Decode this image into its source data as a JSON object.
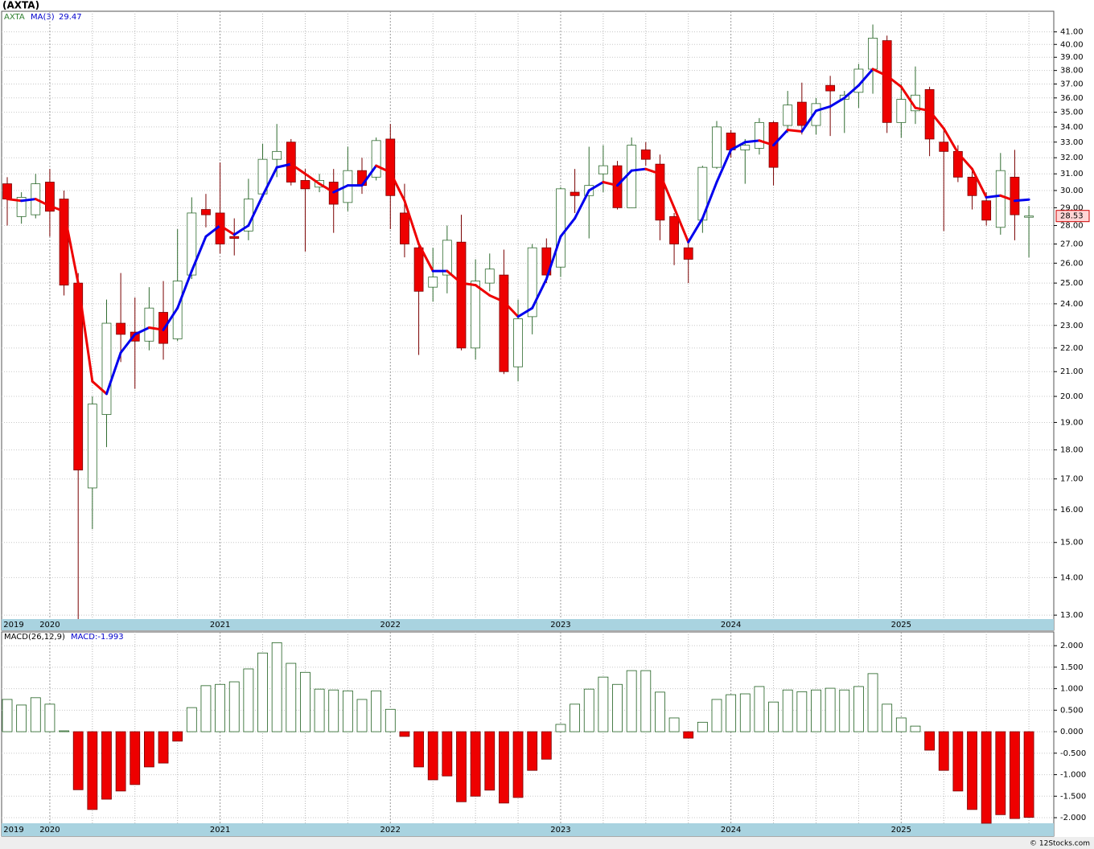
{
  "chart_data": [
    {
      "type": "candlestick",
      "title": "(AXTA)",
      "symbol": "AXTA",
      "categories": [
        "2019",
        null,
        null,
        "2020",
        null,
        null,
        null,
        null,
        null,
        null,
        null,
        null,
        null,
        null,
        null,
        "2021",
        null,
        null,
        null,
        null,
        null,
        null,
        null,
        null,
        null,
        null,
        null,
        "2022",
        null,
        null,
        null,
        null,
        null,
        null,
        null,
        null,
        null,
        null,
        null,
        "2023",
        null,
        null,
        null,
        null,
        null,
        null,
        null,
        null,
        null,
        null,
        null,
        "2024",
        null,
        null,
        null,
        null,
        null,
        null,
        null,
        null,
        null,
        null,
        null,
        "2025",
        null,
        null,
        null,
        null,
        null,
        null,
        null,
        null,
        null
      ],
      "open": [
        30.4,
        28.5,
        28.6,
        30.5,
        29.5,
        25.0,
        16.7,
        19.3,
        23.1,
        22.7,
        22.3,
        23.6,
        22.4,
        25.4,
        28.9,
        28.7,
        27.4,
        27.7,
        29.8,
        31.9,
        33.0,
        30.6,
        30.2,
        30.5,
        29.3,
        31.2,
        30.8,
        33.2,
        28.7,
        26.8,
        24.8,
        25.4,
        27.1,
        22.0,
        25.0,
        25.4,
        21.2,
        23.4,
        26.8,
        25.8,
        29.9,
        29.7,
        31.0,
        31.5,
        29.0,
        32.5,
        31.6,
        28.5,
        26.8,
        28.3,
        31.4,
        33.6,
        32.5,
        32.6,
        34.3,
        34.1,
        35.7,
        34.1,
        36.9,
        35.9,
        36.4,
        38.1,
        40.3,
        34.3,
        35.1,
        36.6,
        33.0,
        32.4,
        30.8,
        29.4,
        27.9,
        30.8,
        28.5
      ],
      "high": [
        30.8,
        29.9,
        31.0,
        31.3,
        30.0,
        25.5,
        20.0,
        24.2,
        25.5,
        24.3,
        24.8,
        25.1,
        27.8,
        29.6,
        29.8,
        31.7,
        28.4,
        30.7,
        32.9,
        34.2,
        33.2,
        31.3,
        31.0,
        31.3,
        32.7,
        32.0,
        33.3,
        34.2,
        30.4,
        27.0,
        26.8,
        28.0,
        28.6,
        26.2,
        26.5,
        26.7,
        24.2,
        27.0,
        27.3,
        30.2,
        31.3,
        32.7,
        32.8,
        31.8,
        33.3,
        33.0,
        32.2,
        28.7,
        27.1,
        31.5,
        34.4,
        33.8,
        33.2,
        34.6,
        34.4,
        36.5,
        37.1,
        36.0,
        37.6,
        36.5,
        38.5,
        41.6,
        40.7,
        37.0,
        38.3,
        36.8,
        34.0,
        32.8,
        31.2,
        29.9,
        32.3,
        32.5,
        29.1
      ],
      "low": [
        28.0,
        28.1,
        28.4,
        27.4,
        24.4,
        12.9,
        15.4,
        18.1,
        21.4,
        20.3,
        21.9,
        21.5,
        22.3,
        25.2,
        27.9,
        26.5,
        26.4,
        27.2,
        29.6,
        30.8,
        30.3,
        26.6,
        29.9,
        27.6,
        28.8,
        29.8,
        30.6,
        27.8,
        26.3,
        21.7,
        24.1,
        24.5,
        21.9,
        21.5,
        24.6,
        20.9,
        20.6,
        22.6,
        25.0,
        25.3,
        28.7,
        27.3,
        29.9,
        28.9,
        29.0,
        31.5,
        27.2,
        25.9,
        25.0,
        27.6,
        31.3,
        32.0,
        30.4,
        32.2,
        30.3,
        33.6,
        33.5,
        33.5,
        33.4,
        33.6,
        35.3,
        36.3,
        33.6,
        33.3,
        34.2,
        32.1,
        27.7,
        30.5,
        28.9,
        28.0,
        27.5,
        27.2,
        26.3
      ],
      "close": [
        29.5,
        29.6,
        30.4,
        28.8,
        24.9,
        17.3,
        19.7,
        23.1,
        22.6,
        22.3,
        23.8,
        22.2,
        25.1,
        28.7,
        28.6,
        27.0,
        27.3,
        29.5,
        31.9,
        32.4,
        30.5,
        30.1,
        30.6,
        29.2,
        31.2,
        30.3,
        33.1,
        29.7,
        27.0,
        24.6,
        25.3,
        27.2,
        22.0,
        25.1,
        25.7,
        21.0,
        23.3,
        26.8,
        25.4,
        30.1,
        29.7,
        30.3,
        31.5,
        29.0,
        32.8,
        31.9,
        28.3,
        27.0,
        26.2,
        31.4,
        34.0,
        32.5,
        32.8,
        34.3,
        31.4,
        35.5,
        34.1,
        35.6,
        36.5,
        36.2,
        38.1,
        40.5,
        34.3,
        35.9,
        36.2,
        33.2,
        32.4,
        30.8,
        29.7,
        28.3,
        31.2,
        28.6,
        28.53
      ],
      "close_label": "28.53",
      "up_color": "#ffffff",
      "up_stroke": "#2f6b2f",
      "down_color": "#ee0000",
      "down_stroke": "#7a0000",
      "ma": {
        "name": "MA(3)",
        "last_label": "29.47",
        "up_color": "#0000ee",
        "down_color": "#ee0000",
        "values": [
          29.5,
          29.4,
          29.5,
          29.1,
          28.8,
          25.0,
          20.6,
          20.1,
          21.8,
          22.6,
          22.9,
          22.8,
          23.8,
          25.6,
          27.4,
          28.0,
          27.5,
          28.0,
          29.7,
          31.4,
          31.6,
          31.0,
          30.4,
          29.9,
          30.3,
          30.3,
          31.5,
          31.1,
          29.4,
          27.0,
          25.6,
          25.6,
          25.0,
          24.9,
          24.4,
          24.1,
          23.4,
          23.8,
          25.2,
          27.4,
          28.4,
          30.0,
          30.5,
          30.3,
          31.2,
          31.3,
          31.0,
          29.0,
          27.1,
          28.4,
          30.5,
          32.5,
          33.0,
          33.1,
          32.8,
          33.8,
          33.7,
          35.1,
          35.4,
          36.0,
          36.9,
          38.1,
          37.6,
          36.8,
          35.3,
          35.1,
          33.9,
          32.3,
          31.3,
          29.6,
          29.7,
          29.4,
          29.47
        ]
      },
      "log_scale": true,
      "grid": true,
      "ylim": [
        12.9,
        42.7
      ],
      "yticks": [
        {
          "value": 13,
          "label": "13.00"
        },
        {
          "value": 14,
          "label": "14.00"
        },
        {
          "value": 15,
          "label": "15.00"
        },
        {
          "value": 16,
          "label": "16.00"
        },
        {
          "value": 17,
          "label": "17.00"
        },
        {
          "value": 18,
          "label": "18.00"
        },
        {
          "value": 19,
          "label": "19.00"
        },
        {
          "value": 20,
          "label": "20.00"
        },
        {
          "value": 21,
          "label": "21.00"
        },
        {
          "value": 22,
          "label": "22.00"
        },
        {
          "value": 23,
          "label": "23.00"
        },
        {
          "value": 24,
          "label": "24.00"
        },
        {
          "value": 25,
          "label": "25.00"
        },
        {
          "value": 26,
          "label": "26.00"
        },
        {
          "value": 27,
          "label": "27.00"
        },
        {
          "value": 28,
          "label": "28.00"
        },
        {
          "value": 29,
          "label": "29.00"
        },
        {
          "value": 30,
          "label": "30.00"
        },
        {
          "value": 31,
          "label": "31.00"
        },
        {
          "value": 32,
          "label": "32.00"
        },
        {
          "value": 33,
          "label": "33.00"
        },
        {
          "value": 34,
          "label": "34.00"
        },
        {
          "value": 35,
          "label": "35.00"
        },
        {
          "value": 36,
          "label": "36.00"
        },
        {
          "value": 37,
          "label": "37.00"
        },
        {
          "value": 38,
          "label": "38.00"
        },
        {
          "value": 39,
          "label": "39.00"
        },
        {
          "value": 40,
          "label": "40.00"
        },
        {
          "value": 41,
          "label": "41.00"
        }
      ]
    },
    {
      "type": "bar",
      "title": "MACD(26,12,9)",
      "value_label": "MACD:-1.993",
      "categories": [
        "2019",
        null,
        null,
        "2020",
        null,
        null,
        null,
        null,
        null,
        null,
        null,
        null,
        null,
        null,
        null,
        "2021",
        null,
        null,
        null,
        null,
        null,
        null,
        null,
        null,
        null,
        null,
        null,
        "2022",
        null,
        null,
        null,
        null,
        null,
        null,
        null,
        null,
        null,
        null,
        null,
        "2023",
        null,
        null,
        null,
        null,
        null,
        null,
        null,
        null,
        null,
        null,
        null,
        "2024",
        null,
        null,
        null,
        null,
        null,
        null,
        null,
        null,
        null,
        null,
        null,
        "2025",
        null,
        null,
        null,
        null,
        null,
        null,
        null,
        null,
        null
      ],
      "values": [
        0.75,
        0.62,
        0.79,
        0.64,
        0.02,
        -1.35,
        -1.81,
        -1.57,
        -1.38,
        -1.23,
        -0.82,
        -0.73,
        -0.22,
        0.56,
        1.07,
        1.1,
        1.16,
        1.46,
        1.83,
        2.07,
        1.59,
        1.38,
        0.99,
        0.97,
        0.95,
        0.75,
        0.95,
        0.52,
        -0.11,
        -0.82,
        -1.12,
        -1.03,
        -1.63,
        -1.5,
        -1.36,
        -1.66,
        -1.53,
        -0.9,
        -0.64,
        0.17,
        0.64,
        0.99,
        1.27,
        1.1,
        1.42,
        1.42,
        0.92,
        0.32,
        -0.15,
        0.22,
        0.75,
        0.86,
        0.88,
        1.05,
        0.69,
        0.97,
        0.93,
        0.97,
        1.01,
        0.97,
        1.05,
        1.35,
        0.64,
        0.32,
        0.13,
        -0.43,
        -0.9,
        -1.38,
        -1.81,
        -2.13,
        -1.93,
        -2.02,
        -1.993
      ],
      "up_color": "#ffffff",
      "up_stroke": "#1f5f1f",
      "down_color": "#ee0000",
      "down_stroke": "#7a0000",
      "grid": true,
      "ylim": [
        -2.13,
        2.32
      ],
      "yticks": [
        {
          "value": 2,
          "label": "2.000"
        },
        {
          "value": 1.5,
          "label": "1.500"
        },
        {
          "value": 1,
          "label": "1.000"
        },
        {
          "value": 0.5,
          "label": "0.500"
        },
        {
          "value": 0,
          "label": "0.000"
        },
        {
          "value": -0.5,
          "label": "-0.500"
        },
        {
          "value": -1,
          "label": "-1.000"
        },
        {
          "value": -1.5,
          "label": "-1.500"
        },
        {
          "value": -2,
          "label": "-2.000"
        }
      ]
    }
  ],
  "footer": "© 12Stocks.com"
}
